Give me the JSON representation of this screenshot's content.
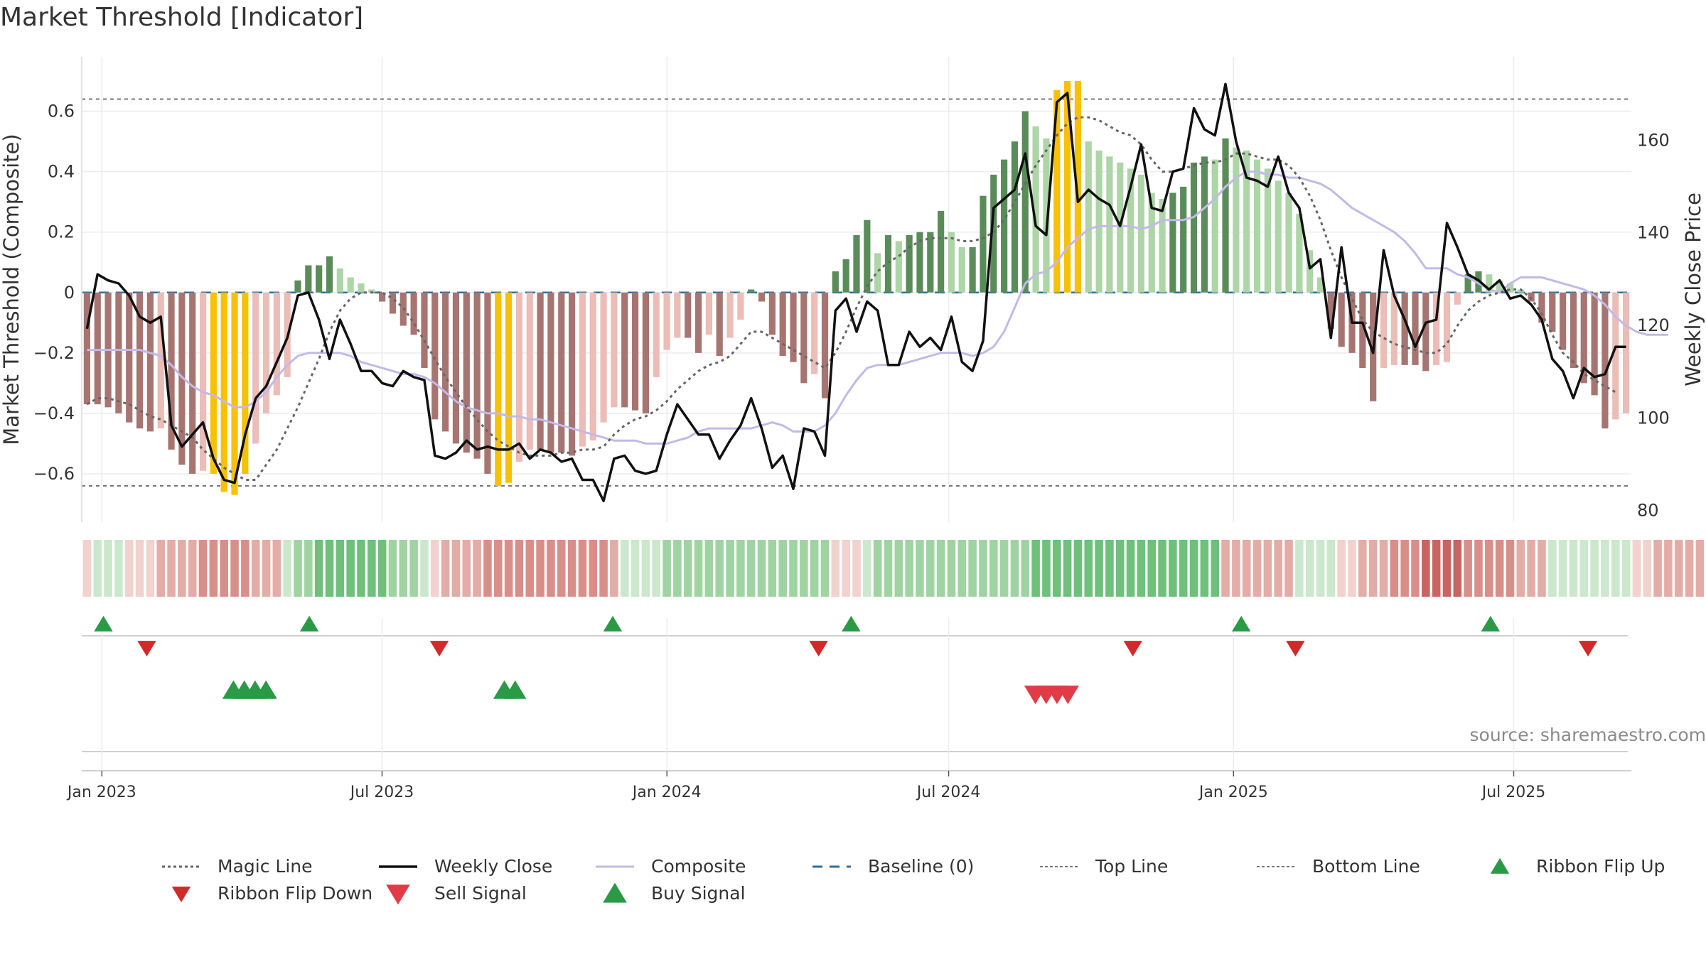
{
  "colors": {
    "bar_pos_strong": "#5a8c5a",
    "bar_pos_light": "#aed5a7",
    "bar_neg_strong": "#a77571",
    "bar_neg_light": "#ecbcb6",
    "bar_extreme": "#f7c109",
    "weekly_close": "#111111",
    "composite": "#c3b9e8",
    "magic_line": "#666666",
    "baseline": "#2b6f9e",
    "threshold_lines": "#777777",
    "flip_up": "#2a9a46",
    "flip_down": "#cf2b2b",
    "sell": "#e23b48",
    "buy": "#2a9a46"
  },
  "legend": [
    {
      "key": "magic",
      "label": "Magic Line",
      "icon": "dotted-line-icon"
    },
    {
      "key": "close",
      "label": "Weekly Close",
      "icon": "solid-line-icon"
    },
    {
      "key": "composite",
      "label": "Composite",
      "icon": "solid-line-icon"
    },
    {
      "key": "baseline",
      "label": "Baseline (0)",
      "icon": "dashed-line-icon"
    },
    {
      "key": "top",
      "label": "Top Line",
      "icon": "dotted-line-icon"
    },
    {
      "key": "bottom",
      "label": "Bottom Line",
      "icon": "dotted-line-icon"
    },
    {
      "key": "flip_up",
      "label": "Ribbon Flip Up",
      "icon": "triangle-up-icon"
    },
    {
      "key": "flip_down",
      "label": "Ribbon Flip Down",
      "icon": "triangle-down-icon"
    },
    {
      "key": "sell",
      "label": "Sell Signal",
      "icon": "triangle-down-icon"
    },
    {
      "key": "buy",
      "label": "Buy Signal",
      "icon": "triangle-up-icon"
    }
  ],
  "source": "source: sharemaestro.com",
  "chart_data": {
    "type": "bar",
    "title": "Market Threshold [Indicator]",
    "ylabel": "Market Threshold (Composite)",
    "ylabel_right": "Weekly Close Price",
    "ylim": [
      -0.76,
      0.78
    ],
    "ylim_right": [
      77.5,
      178
    ],
    "yticks": [
      -0.6,
      -0.4,
      -0.2,
      0,
      0.2,
      0.4,
      0.6
    ],
    "ytick_labels": [
      "−0.6",
      "−0.4",
      "−0.2",
      "0",
      "0.2",
      "0.4",
      "0.6"
    ],
    "yticks_right": [
      80,
      100,
      120,
      140,
      160
    ],
    "x_start": "2022-12-19",
    "x_end": "2025-09-15",
    "xticks": [
      "2023-01-01",
      "2023-07-01",
      "2024-01-01",
      "2024-07-01",
      "2025-01-01",
      "2025-07-01"
    ],
    "xtick_labels": [
      "Jan 2023",
      "Jul 2023",
      "Jan 2024",
      "Jul 2024",
      "Jan 2025",
      "Jul 2025"
    ],
    "grid": true,
    "legend_position": "bottom",
    "top_line": 0.64,
    "bottom_line": -0.64,
    "baseline": 0,
    "series": [
      {
        "name": "Composite",
        "values": [
          -0.19,
          -0.19,
          -0.19,
          -0.19,
          -0.19,
          -0.19,
          -0.2,
          -0.21,
          -0.24,
          -0.28,
          -0.31,
          -0.33,
          -0.34,
          -0.36,
          -0.38,
          -0.38,
          -0.36,
          -0.33,
          -0.28,
          -0.24,
          -0.21,
          -0.2,
          -0.2,
          -0.2,
          -0.2,
          -0.21,
          -0.23,
          -0.24,
          -0.25,
          -0.26,
          -0.27,
          -0.27,
          -0.28,
          -0.3,
          -0.33,
          -0.36,
          -0.38,
          -0.39,
          -0.4,
          -0.4,
          -0.41,
          -0.41,
          -0.42,
          -0.42,
          -0.43,
          -0.44,
          -0.45,
          -0.46,
          -0.47,
          -0.48,
          -0.49,
          -0.49,
          -0.49,
          -0.5,
          -0.5,
          -0.5,
          -0.49,
          -0.48,
          -0.46,
          -0.45,
          -0.45,
          -0.45,
          -0.45,
          -0.45,
          -0.44,
          -0.43,
          -0.44,
          -0.46,
          -0.46,
          -0.46,
          -0.44,
          -0.4,
          -0.34,
          -0.29,
          -0.25,
          -0.24,
          -0.24,
          -0.24,
          -0.23,
          -0.22,
          -0.21,
          -0.2,
          -0.2,
          -0.2,
          -0.21,
          -0.2,
          -0.18,
          -0.13,
          -0.05,
          0.03,
          0.06,
          0.07,
          0.1,
          0.15,
          0.18,
          0.21,
          0.22,
          0.22,
          0.22,
          0.22,
          0.21,
          0.22,
          0.24,
          0.24,
          0.24,
          0.25,
          0.28,
          0.31,
          0.35,
          0.38,
          0.4,
          0.4,
          0.39,
          0.39,
          0.38,
          0.38,
          0.37,
          0.36,
          0.34,
          0.31,
          0.28,
          0.26,
          0.24,
          0.22,
          0.2,
          0.17,
          0.13,
          0.08,
          0.08,
          0.08,
          0.06,
          0.05,
          0.03,
          0.01,
          0.0,
          0.03,
          0.05,
          0.05,
          0.05,
          0.04,
          0.03,
          0.02,
          0.01,
          -0.01,
          -0.04,
          -0.08,
          -0.11,
          -0.13,
          -0.14,
          -0.14,
          -0.14
        ]
      },
      {
        "name": "Weekly Close",
        "values": [
          -0.12,
          0.06,
          0.04,
          0.03,
          -0.01,
          -0.08,
          -0.1,
          -0.08,
          -0.44,
          -0.51,
          -0.47,
          -0.43,
          -0.55,
          -0.62,
          -0.63,
          -0.47,
          -0.35,
          -0.31,
          -0.23,
          -0.15,
          -0.01,
          0.0,
          -0.09,
          -0.22,
          -0.09,
          -0.17,
          -0.26,
          -0.26,
          -0.3,
          -0.31,
          -0.26,
          -0.28,
          -0.29,
          -0.54,
          -0.55,
          -0.53,
          -0.49,
          -0.52,
          -0.51,
          -0.52,
          -0.52,
          -0.5,
          -0.55,
          -0.52,
          -0.53,
          -0.56,
          -0.55,
          -0.62,
          -0.62,
          -0.69,
          -0.55,
          -0.54,
          -0.59,
          -0.6,
          -0.59,
          -0.47,
          -0.37,
          -0.42,
          -0.47,
          -0.47,
          -0.55,
          -0.49,
          -0.44,
          -0.35,
          -0.45,
          -0.58,
          -0.54,
          -0.65,
          -0.45,
          -0.46,
          -0.54,
          -0.06,
          -0.02,
          -0.13,
          -0.03,
          -0.06,
          -0.24,
          -0.24,
          -0.13,
          -0.18,
          -0.15,
          -0.19,
          -0.08,
          -0.23,
          -0.26,
          -0.16,
          0.28,
          0.31,
          0.34,
          0.46,
          0.22,
          0.19,
          0.63,
          0.66,
          0.3,
          0.34,
          0.31,
          0.29,
          0.22,
          0.35,
          0.49,
          0.28,
          0.27,
          0.4,
          0.41,
          0.61,
          0.54,
          0.52,
          0.69,
          0.5,
          0.38,
          0.37,
          0.35,
          0.45,
          0.33,
          0.28,
          0.08,
          0.11,
          -0.15,
          0.15,
          -0.1,
          -0.1,
          -0.2,
          0.14,
          -0.01,
          -0.09,
          -0.18,
          -0.1,
          -0.09,
          0.23,
          0.15,
          0.06,
          0.04,
          0.01,
          0.04,
          -0.02,
          -0.01,
          -0.04,
          -0.09,
          -0.22,
          -0.26,
          -0.35,
          -0.25,
          -0.28,
          -0.27,
          -0.18,
          -0.18
        ]
      },
      {
        "name": "Magic Line",
        "values": [
          -0.37,
          -0.35,
          -0.35,
          -0.36,
          -0.37,
          -0.39,
          -0.41,
          -0.42,
          -0.44,
          -0.46,
          -0.48,
          -0.52,
          -0.55,
          -0.58,
          -0.6,
          -0.62,
          -0.62,
          -0.57,
          -0.52,
          -0.45,
          -0.38,
          -0.3,
          -0.22,
          -0.13,
          -0.06,
          -0.02,
          0.0,
          0.0,
          0.0,
          -0.02,
          -0.05,
          -0.1,
          -0.16,
          -0.22,
          -0.28,
          -0.33,
          -0.38,
          -0.42,
          -0.46,
          -0.49,
          -0.51,
          -0.53,
          -0.54,
          -0.54,
          -0.54,
          -0.53,
          -0.53,
          -0.52,
          -0.52,
          -0.51,
          -0.47,
          -0.44,
          -0.42,
          -0.41,
          -0.39,
          -0.36,
          -0.32,
          -0.29,
          -0.26,
          -0.24,
          -0.23,
          -0.21,
          -0.17,
          -0.13,
          -0.13,
          -0.15,
          -0.17,
          -0.19,
          -0.21,
          -0.23,
          -0.25,
          -0.2,
          -0.13,
          -0.05,
          0.02,
          0.07,
          0.1,
          0.12,
          0.15,
          0.17,
          0.18,
          0.18,
          0.18,
          0.17,
          0.17,
          0.18,
          0.2,
          0.24,
          0.3,
          0.36,
          0.42,
          0.47,
          0.52,
          0.56,
          0.58,
          0.58,
          0.57,
          0.55,
          0.53,
          0.52,
          0.49,
          0.44,
          0.4,
          0.4,
          0.41,
          0.42,
          0.43,
          0.43,
          0.44,
          0.46,
          0.46,
          0.45,
          0.44,
          0.44,
          0.42,
          0.38,
          0.32,
          0.24,
          0.14,
          0.05,
          -0.02,
          -0.09,
          -0.13,
          -0.15,
          -0.17,
          -0.18,
          -0.19,
          -0.2,
          -0.2,
          -0.17,
          -0.11,
          -0.06,
          -0.03,
          -0.01,
          0.0,
          0.01,
          0.01,
          -0.02,
          -0.07,
          -0.14,
          -0.2,
          -0.23,
          -0.27,
          -0.29,
          -0.31,
          -0.33
        ]
      },
      {
        "name": "Composite Bars",
        "values": [
          -0.37,
          -0.37,
          -0.38,
          -0.4,
          -0.43,
          -0.45,
          -0.46,
          -0.45,
          -0.52,
          -0.57,
          -0.6,
          -0.59,
          -0.6,
          -0.66,
          -0.67,
          -0.6,
          -0.5,
          -0.4,
          -0.34,
          -0.28,
          0.04,
          0.09,
          0.09,
          0.12,
          0.08,
          0.05,
          0.03,
          0.01,
          -0.03,
          -0.07,
          -0.11,
          -0.14,
          -0.25,
          -0.42,
          -0.46,
          -0.5,
          -0.53,
          -0.55,
          -0.6,
          -0.64,
          -0.63,
          -0.56,
          -0.52,
          -0.52,
          -0.53,
          -0.53,
          -0.54,
          -0.51,
          -0.49,
          -0.43,
          -0.38,
          -0.38,
          -0.39,
          -0.4,
          -0.28,
          -0.19,
          -0.15,
          -0.15,
          -0.2,
          -0.14,
          -0.21,
          -0.15,
          -0.09,
          0.01,
          -0.03,
          -0.14,
          -0.21,
          -0.23,
          -0.3,
          -0.27,
          -0.35,
          0.07,
          0.11,
          0.19,
          0.24,
          0.13,
          0.19,
          0.17,
          0.19,
          0.2,
          0.2,
          0.27,
          0.2,
          0.15,
          0.15,
          0.32,
          0.39,
          0.44,
          0.5,
          0.6,
          0.55,
          0.51,
          0.67,
          0.7,
          0.7,
          0.5,
          0.47,
          0.45,
          0.43,
          0.41,
          0.39,
          0.33,
          0.31,
          0.33,
          0.35,
          0.43,
          0.45,
          0.44,
          0.51,
          0.48,
          0.47,
          0.44,
          0.41,
          0.37,
          0.33,
          0.26,
          0.14,
          0.05,
          -0.12,
          -0.18,
          -0.2,
          -0.25,
          -0.36,
          -0.25,
          -0.24,
          -0.24,
          -0.24,
          -0.26,
          -0.24,
          -0.23,
          -0.04,
          0.06,
          0.07,
          0.06,
          0.04,
          0.03,
          0.01,
          -0.03,
          -0.1,
          -0.13,
          -0.19,
          -0.25,
          -0.3,
          -0.34,
          -0.45,
          -0.42,
          -0.4
        ]
      }
    ],
    "ribbon": [
      -1,
      1,
      1,
      1,
      -1,
      -1,
      -1,
      -2,
      -2,
      -2,
      -2,
      -3,
      -3,
      -3,
      -3,
      -3,
      -2,
      -2,
      -2,
      1,
      2,
      2,
      3,
      3,
      3,
      3,
      3,
      3,
      3,
      2,
      2,
      2,
      1,
      -1,
      -2,
      -2,
      -2,
      -2,
      -3,
      -3,
      -3,
      -3,
      -3,
      -3,
      -3,
      -3,
      -3,
      -3,
      -3,
      -3,
      -2,
      1,
      1,
      1,
      1,
      2,
      2,
      2,
      2,
      2,
      2,
      2,
      2,
      2,
      2,
      2,
      2,
      2,
      2,
      2,
      2,
      -1,
      -1,
      -1,
      1,
      2,
      2,
      2,
      2,
      2,
      2,
      2,
      2,
      2,
      2,
      2,
      2,
      2,
      2,
      2,
      3,
      3,
      3,
      3,
      3,
      3,
      3,
      3,
      3,
      3,
      3,
      3,
      3,
      3,
      3,
      3,
      3,
      3,
      -2,
      -2,
      -2,
      -2,
      -2,
      -2,
      -2,
      1,
      1,
      1,
      1,
      -1,
      -1,
      -2,
      -2,
      -2,
      -3,
      -3,
      -3,
      -4,
      -4,
      -4,
      -4,
      -3,
      -3,
      -3,
      -3,
      -3,
      -2,
      -2,
      -2,
      1,
      1,
      1,
      1,
      1,
      1,
      1,
      1,
      -1,
      -1,
      -2,
      -2,
      -2,
      -2,
      -2,
      -2
    ],
    "flip_up": [
      "2023-01-02",
      "2023-05-15",
      "2023-11-27",
      "2024-04-29",
      "2025-01-06",
      "2025-06-16"
    ],
    "flip_down": [
      "2023-01-30",
      "2023-08-07",
      "2024-04-08",
      "2024-10-28",
      "2025-02-10",
      "2025-08-18"
    ],
    "buy_signals": [
      "2023-03-27",
      "2023-04-03",
      "2023-04-10",
      "2023-04-17",
      "2023-09-18",
      "2023-09-25"
    ],
    "sell_signals": [
      "2024-08-26",
      "2024-09-02",
      "2024-09-09",
      "2024-09-16"
    ]
  }
}
